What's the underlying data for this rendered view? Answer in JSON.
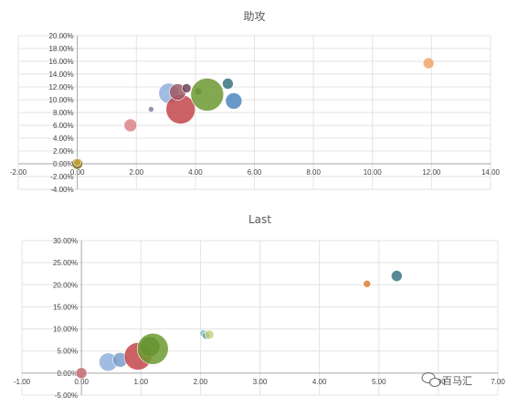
{
  "chart_data": [
    {
      "type": "bubble",
      "title": "助攻",
      "xlim": [
        -2,
        14
      ],
      "ylim": [
        -4,
        20
      ],
      "x_ticks": [
        "-2.00",
        "0.00",
        "2.00",
        "4.00",
        "6.00",
        "8.00",
        "10.00",
        "12.00",
        "14.00"
      ],
      "y_ticks": [
        "20.00%",
        "18.00%",
        "16.00%",
        "14.00%",
        "12.00%",
        "10.00%",
        "8.00%",
        "6.00%",
        "4.00%",
        "2.00%",
        "0.00%",
        "-2.00%",
        "-4.00%"
      ],
      "grid": true,
      "points": [
        {
          "x": 0.0,
          "y": 0.0,
          "size": 6,
          "color": "#7a6a1e"
        },
        {
          "x": 0.0,
          "y": 0.2,
          "size": 4,
          "color": "#c9a43a"
        },
        {
          "x": 1.8,
          "y": 6.0,
          "size": 7,
          "color": "#d98587"
        },
        {
          "x": 2.5,
          "y": 8.5,
          "size": 3,
          "color": "#7b7fa6"
        },
        {
          "x": 3.1,
          "y": 11.0,
          "size": 11,
          "color": "#8fb0dd"
        },
        {
          "x": 3.5,
          "y": 8.5,
          "size": 16,
          "color": "#c4474b"
        },
        {
          "x": 3.4,
          "y": 11.2,
          "size": 9,
          "color": "#9d5965"
        },
        {
          "x": 3.7,
          "y": 11.8,
          "size": 5,
          "color": "#6f4456"
        },
        {
          "x": 4.1,
          "y": 11.3,
          "size": 4,
          "color": "#5c7547"
        },
        {
          "x": 4.4,
          "y": 10.8,
          "size": 18,
          "color": "#6c9a31"
        },
        {
          "x": 5.1,
          "y": 12.5,
          "size": 6,
          "color": "#3b7382"
        },
        {
          "x": 5.3,
          "y": 9.8,
          "size": 9,
          "color": "#4f87bf"
        },
        {
          "x": 11.9,
          "y": 15.7,
          "size": 6,
          "color": "#f2a46c"
        }
      ]
    },
    {
      "type": "bubble",
      "title": "Last",
      "xlim": [
        -1,
        7
      ],
      "ylim": [
        -5,
        30
      ],
      "x_ticks": [
        "-1.00",
        "0.00",
        "1.00",
        "2.00",
        "3.00",
        "4.00",
        "5.00",
        "6.00",
        "7.00"
      ],
      "y_ticks": [
        "30.00%",
        "25.00%",
        "20.00%",
        "15.00%",
        "10.00%",
        "5.00%",
        "0.00%",
        "-5.00%"
      ],
      "grid": true,
      "points": [
        {
          "x": 0.0,
          "y": 0.0,
          "size": 6,
          "color": "#c46a72"
        },
        {
          "x": 0.45,
          "y": 2.5,
          "size": 10,
          "color": "#8fb0dd"
        },
        {
          "x": 0.65,
          "y": 3.0,
          "size": 8,
          "color": "#7a9dc9"
        },
        {
          "x": 0.95,
          "y": 3.8,
          "size": 15,
          "color": "#c4474b"
        },
        {
          "x": 1.15,
          "y": 6.0,
          "size": 11,
          "color": "#4f6a2c"
        },
        {
          "x": 1.2,
          "y": 5.5,
          "size": 17,
          "color": "#6c9a31"
        },
        {
          "x": 2.05,
          "y": 9.0,
          "size": 4,
          "color": "#8fc6c8"
        },
        {
          "x": 2.1,
          "y": 8.5,
          "size": 4,
          "color": "#3e8085"
        },
        {
          "x": 2.15,
          "y": 8.7,
          "size": 5,
          "color": "#c7d28a"
        },
        {
          "x": 4.8,
          "y": 20.2,
          "size": 4,
          "color": "#d9803a"
        },
        {
          "x": 5.3,
          "y": 22.0,
          "size": 6,
          "color": "#3b7382"
        }
      ]
    }
  ],
  "watermark": {
    "text": "百马汇",
    "icon": "wechat-icon"
  }
}
